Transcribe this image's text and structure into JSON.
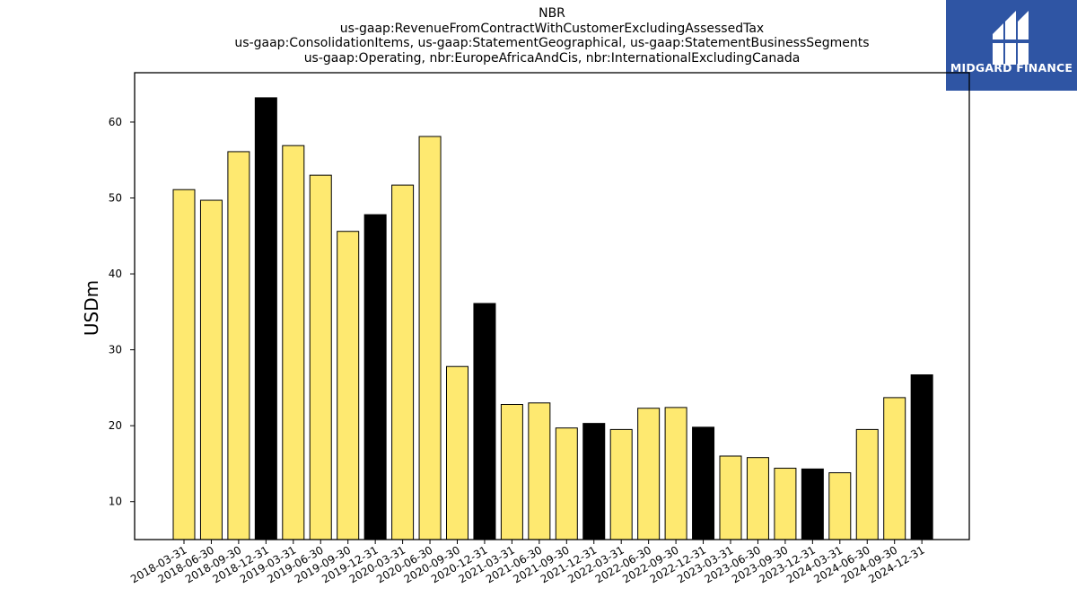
{
  "title_lines": [
    "NBR",
    "us-gaap:RevenueFromContractWithCustomerExcludingAssessedTax",
    "us-gaap:ConsolidationItems, us-gaap:StatementGeographical, us-gaap:StatementBusinessSegments",
    "us-gaap:Operating, nbr:EuropeAfricaAndCis, nbr:InternationalExcludingCanada"
  ],
  "logo": {
    "text": "MIDGARD FINANCE",
    "background": "#2f55a4"
  },
  "colors": {
    "quarter_bar": "#fee970",
    "year_end_bar": "#000000",
    "bar_edge": "#000000"
  },
  "chart_data": {
    "type": "bar",
    "ylabel": "USDm",
    "xlabel": "",
    "ylim": [
      5,
      66.5
    ],
    "yticks": [
      10,
      20,
      30,
      40,
      50,
      60
    ],
    "grid": false,
    "categories": [
      "2018-03-31",
      "2018-06-30",
      "2018-09-30",
      "2018-12-31",
      "2019-03-31",
      "2019-06-30",
      "2019-09-30",
      "2019-12-31",
      "2020-03-31",
      "2020-06-30",
      "2020-09-30",
      "2020-12-31",
      "2021-03-31",
      "2021-06-30",
      "2021-09-30",
      "2021-12-31",
      "2022-03-31",
      "2022-06-30",
      "2022-09-30",
      "2022-12-31",
      "2023-03-31",
      "2023-06-30",
      "2023-09-30",
      "2023-12-31",
      "2024-03-31",
      "2024-06-30",
      "2024-09-30",
      "2024-12-31"
    ],
    "values": [
      51.1,
      49.7,
      56.1,
      63.2,
      56.9,
      53.0,
      45.6,
      47.8,
      51.7,
      58.1,
      27.8,
      36.1,
      22.8,
      23.0,
      19.7,
      20.3,
      19.5,
      22.3,
      22.4,
      19.8,
      16.0,
      15.8,
      14.4,
      14.3,
      13.8,
      19.5,
      23.7,
      26.7
    ],
    "highlight": [
      false,
      false,
      false,
      true,
      false,
      false,
      false,
      true,
      false,
      false,
      false,
      true,
      false,
      false,
      false,
      true,
      false,
      false,
      false,
      true,
      false,
      false,
      false,
      true,
      false,
      false,
      false,
      true
    ]
  }
}
